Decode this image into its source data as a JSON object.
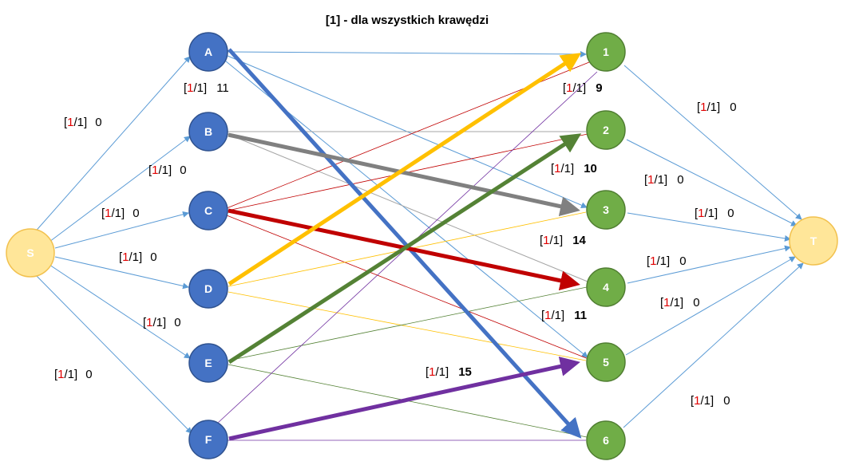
{
  "title": "[1]   -   dla wszystkich krawędzi",
  "colors": {
    "source_sink_fill": "#FFE699",
    "source_sink_stroke": "#F2C14E",
    "left_fill": "#4472C4",
    "left_stroke": "#2F528F",
    "right_fill": "#70AD47",
    "right_stroke": "#507E32",
    "thin_edge": "#5B9BD5",
    "capacity_red": "#E00000"
  },
  "nodes": {
    "source": "S",
    "sink": "T",
    "left": [
      "A",
      "B",
      "C",
      "D",
      "E",
      "F"
    ],
    "right": [
      "1",
      "2",
      "3",
      "4",
      "5",
      "6"
    ]
  },
  "edge_labels": {
    "s_a": {
      "bracket_open": "[",
      "flow": "1",
      "cap": "/1]",
      "weight": "0"
    },
    "s_b": {
      "bracket_open": "[",
      "flow": "1",
      "cap": "/1]",
      "weight": "0"
    },
    "s_c": {
      "bracket_open": "[",
      "flow": "1",
      "cap": "/1]",
      "weight": "0"
    },
    "s_d": {
      "bracket_open": "[",
      "flow": "1",
      "cap": "/1]",
      "weight": "0"
    },
    "s_e": {
      "bracket_open": "[",
      "flow": "1",
      "cap": "/1]",
      "weight": "0"
    },
    "s_f": {
      "bracket_open": "[",
      "flow": "1",
      "cap": "/1]",
      "weight": "0"
    },
    "a_6": {
      "bracket_open": "[",
      "flow": "1",
      "cap": "/1]",
      "weight": "11"
    },
    "d_1": {
      "bracket_open": "[",
      "flow": "1",
      "cap": "/1]",
      "weight": "9"
    },
    "e_2": {
      "bracket_open": "[",
      "flow": "1",
      "cap": "/1]",
      "weight": "10"
    },
    "b_3": {
      "bracket_open": "[",
      "flow": "1",
      "cap": "/1]",
      "weight": "14"
    },
    "c_4": {
      "bracket_open": "[",
      "flow": "1",
      "cap": "/1]",
      "weight": "11"
    },
    "f_5": {
      "bracket_open": "[",
      "flow": "1",
      "cap": "/1]",
      "weight": "15"
    },
    "1_t": {
      "bracket_open": "[",
      "flow": "1",
      "cap": "/1]",
      "weight": "0"
    },
    "2_t": {
      "bracket_open": "[",
      "flow": "1",
      "cap": "/1]",
      "weight": "0"
    },
    "3_t": {
      "bracket_open": "[",
      "flow": "1",
      "cap": "/1]",
      "weight": "0"
    },
    "4_t": {
      "bracket_open": "[",
      "flow": "1",
      "cap": "/1]",
      "weight": "0"
    },
    "5_t": {
      "bracket_open": "[",
      "flow": "1",
      "cap": "/1]",
      "weight": "0"
    },
    "6_t": {
      "bracket_open": "[",
      "flow": "1",
      "cap": "/1]",
      "weight": "0"
    }
  }
}
